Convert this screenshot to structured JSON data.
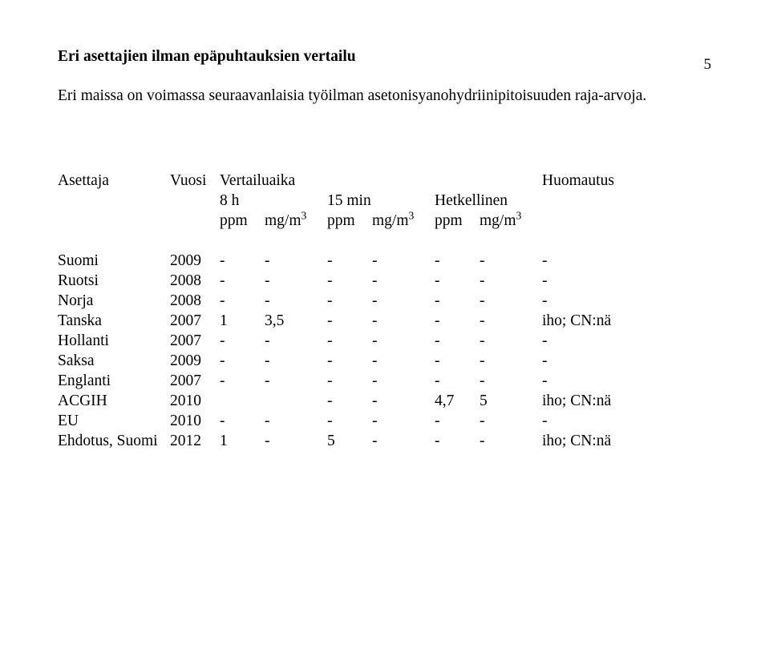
{
  "page_number": "5",
  "title": "Eri asettajien ilman epäpuhtauksien vertailu",
  "intro": "Eri maissa on voimassa seuraavanlaisia työilman asetonisyanohydriinipitoisuuden raja-arvoja.",
  "header": {
    "asettaja": "Asettaja",
    "vuosi": "Vuosi",
    "vertailuaika": "Vertailuaika",
    "huomautus": "Huomautus",
    "col_8h": "8 h",
    "col_15min": "15 min",
    "col_hetk": "Hetkellinen",
    "ppm": "ppm",
    "mgm3_prefix": "mg/m",
    "mgm3_sup": "3"
  },
  "rows": [
    {
      "label": "Suomi",
      "year": "2009",
      "c1": "-",
      "c2": "-",
      "c3": "-",
      "c4": "-",
      "c5": "-",
      "c6": "-",
      "note": "-"
    },
    {
      "label": "Ruotsi",
      "year": "2008",
      "c1": "-",
      "c2": "-",
      "c3": "-",
      "c4": "-",
      "c5": "-",
      "c6": "-",
      "note": "-"
    },
    {
      "label": "Norja",
      "year": "2008",
      "c1": "-",
      "c2": "-",
      "c3": "-",
      "c4": "-",
      "c5": "-",
      "c6": "-",
      "note": "-"
    },
    {
      "label": "Tanska",
      "year": "2007",
      "c1": "1",
      "c2": "3,5",
      "c3": "-",
      "c4": "-",
      "c5": "-",
      "c6": "-",
      "note": "iho; CN:nä"
    },
    {
      "label": "Hollanti",
      "year": "2007",
      "c1": "-",
      "c2": "-",
      "c3": "-",
      "c4": "-",
      "c5": "-",
      "c6": "-",
      "note": "-"
    },
    {
      "label": "Saksa",
      "year": "2009",
      "c1": "-",
      "c2": "-",
      "c3": "-",
      "c4": "-",
      "c5": "-",
      "c6": "-",
      "note": "-"
    },
    {
      "label": "Englanti",
      "year": "2007",
      "c1": "-",
      "c2": "-",
      "c3": "-",
      "c4": "-",
      "c5": "-",
      "c6": "-",
      "note": "-"
    },
    {
      "label": "ACGIH",
      "year": "2010",
      "c1": "",
      "c2": "",
      "c3": "-",
      "c4": "-",
      "c5": "4,7",
      "c6": "5",
      "note": "iho; CN:nä"
    },
    {
      "label": "EU",
      "year": "2010",
      "c1": "-",
      "c2": "-",
      "c3": "-",
      "c4": "-",
      "c5": "-",
      "c6": "-",
      "note": "-"
    },
    {
      "label": "Ehdotus, Suomi",
      "year": "2012",
      "c1": "1",
      "c2": "-",
      "c3": "5",
      "c4": "-",
      "c5": "-",
      "c6": "-",
      "note": "iho; CN:nä"
    }
  ],
  "style": {
    "font_family": "Times New Roman",
    "body_fontsize_pt": 15,
    "title_fontsize_pt": 15,
    "text_color": "#000000",
    "background_color": "#ffffff"
  }
}
